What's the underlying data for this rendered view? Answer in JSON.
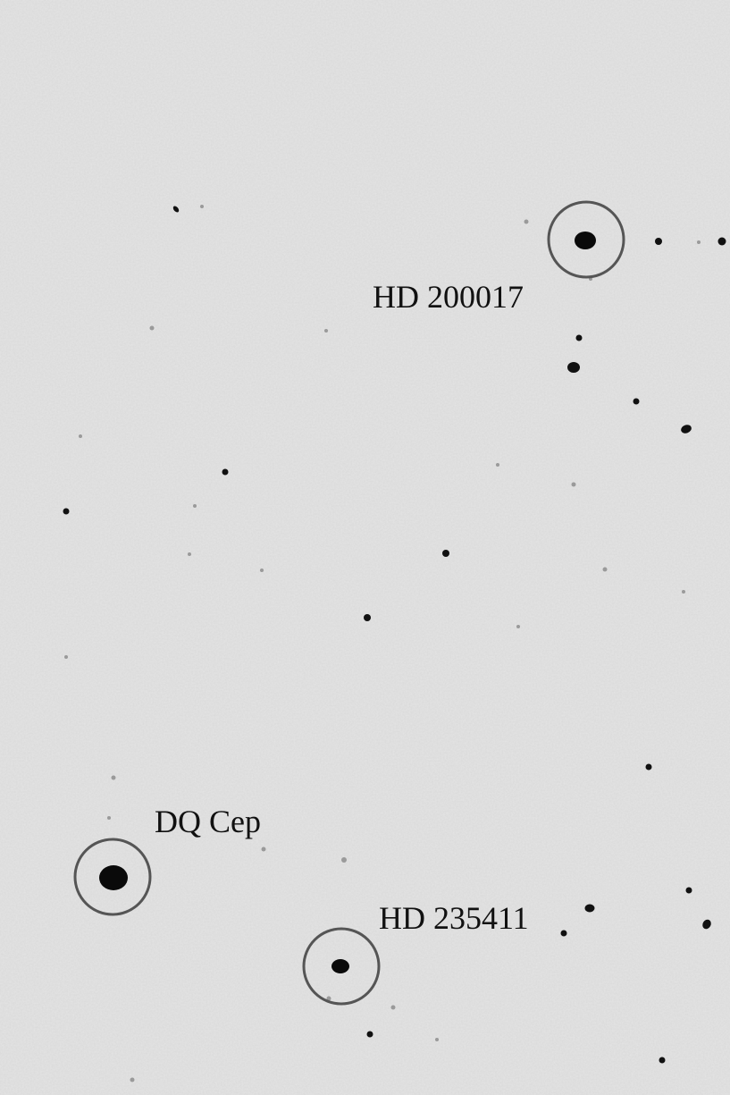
{
  "image": {
    "kind": "astronomical star field finder chart",
    "background_color": "#e4e4e4",
    "star_color": "#0a0a0a",
    "circle_color": "#555555"
  },
  "labeled_stars": [
    {
      "id": "hd200017",
      "label": "HD 200017"
    },
    {
      "id": "dqcep",
      "label": "DQ Cep"
    },
    {
      "id": "hd235411",
      "label": "HD 235411"
    }
  ]
}
